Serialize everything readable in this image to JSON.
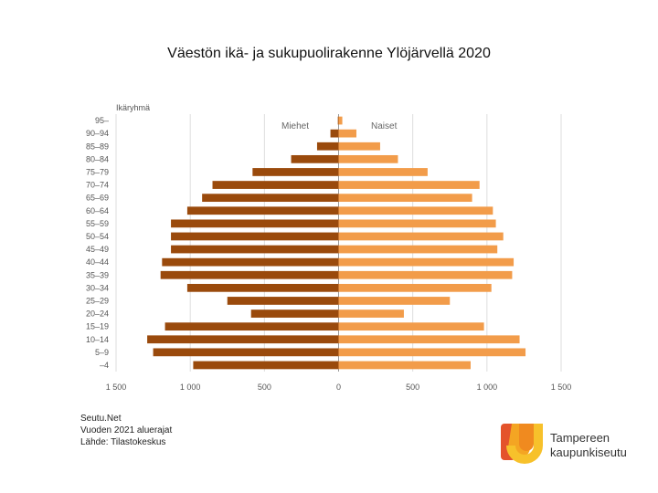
{
  "title": "Väestön ikä- ja sukupuolirakenne Ylöjärvellä 2020",
  "source_lines": [
    "Seutu.Net",
    "Vuoden 2021 aluerajat",
    "Lähde: Tilastokeskus"
  ],
  "logo": {
    "line1": "Tampereen",
    "line2": "kaupunkiseutu"
  },
  "colors": {
    "men": "#9a4a0c",
    "women": "#f29c4a",
    "grid": "#dddddd",
    "axis": "#999999"
  },
  "chart_data": {
    "type": "bar",
    "orientation": "horizontal",
    "ylabel": "Ikäryhmä",
    "categories": [
      "95–",
      "90–94",
      "85–89",
      "80–84",
      "75–79",
      "70–74",
      "65–69",
      "60–64",
      "55–59",
      "50–54",
      "45–49",
      "40–44",
      "35–39",
      "30–34",
      "25–29",
      "20–24",
      "15–19",
      "10–14",
      "5–9",
      "–4"
    ],
    "series": [
      {
        "name": "Miehet",
        "values": [
          5,
          55,
          145,
          320,
          580,
          850,
          920,
          1020,
          1130,
          1130,
          1130,
          1190,
          1200,
          1020,
          750,
          590,
          1170,
          1290,
          1250,
          980
        ]
      },
      {
        "name": "Naiset",
        "values": [
          25,
          120,
          280,
          400,
          600,
          950,
          900,
          1040,
          1060,
          1110,
          1070,
          1180,
          1170,
          1030,
          750,
          440,
          980,
          1220,
          1260,
          890
        ]
      }
    ],
    "xticks": [
      -1500,
      -1000,
      -500,
      0,
      500,
      1000,
      1500
    ],
    "xtick_labels": [
      "1 500",
      "1 000",
      "500",
      "0",
      "500",
      "1 000",
      "1 500"
    ],
    "xlim": [
      -1500,
      1500
    ],
    "grid": true
  }
}
